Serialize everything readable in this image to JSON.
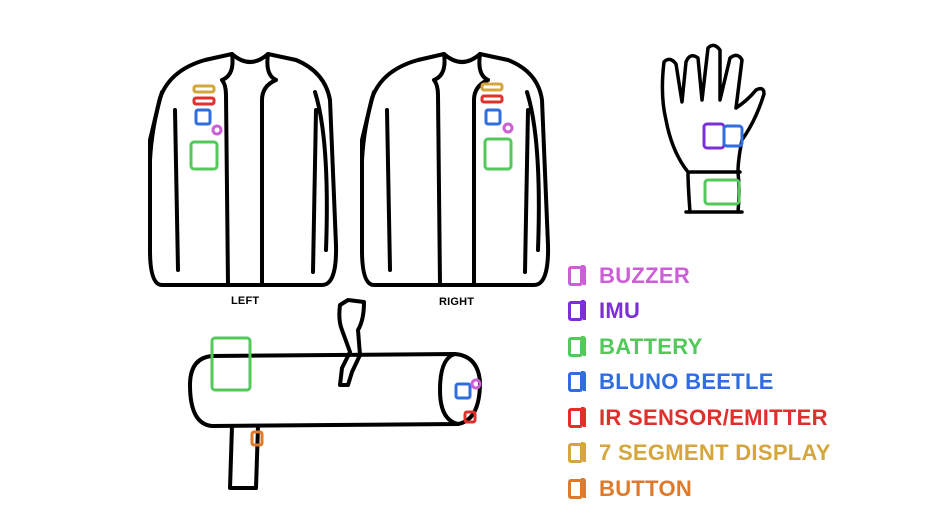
{
  "captions": {
    "left": "LEFT",
    "right": "RIGHT"
  },
  "legend": [
    {
      "key": "buzzer",
      "label": "BUZZER",
      "color": "#cc5ed6"
    },
    {
      "key": "imu",
      "label": "IMU",
      "color": "#7b2fd4"
    },
    {
      "key": "battery",
      "label": "BATTERY",
      "color": "#52c95a"
    },
    {
      "key": "bluno",
      "label": "BLUNO BEETLE",
      "color": "#2f6de0"
    },
    {
      "key": "ir",
      "label": "IR SENSOR/EMITTER",
      "color": "#e0302b"
    },
    {
      "key": "segment",
      "label": "7 SEGMENT DISPLAY",
      "color": "#d4a63c"
    },
    {
      "key": "button",
      "label": "BUTTON",
      "color": "#e07a2b"
    }
  ]
}
